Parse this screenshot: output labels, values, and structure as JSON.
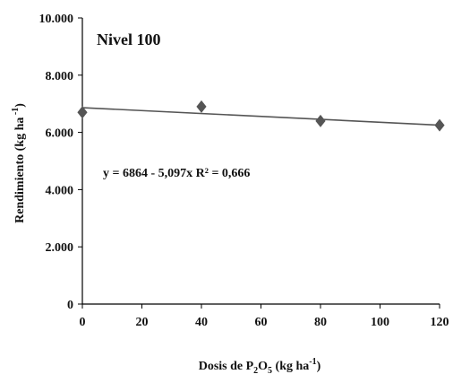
{
  "chart_data": {
    "type": "scatter",
    "title": "Nivel 100",
    "xlabel": "Dosis de P2O5 (kg ha-1)",
    "ylabel": "Rendimiento (kg ha-1)",
    "xlim": [
      0,
      120
    ],
    "ylim": [
      0,
      10000
    ],
    "x_ticks": [
      "0",
      "20",
      "40",
      "60",
      "80",
      "100",
      "120"
    ],
    "y_ticks": [
      "0",
      "2.000",
      "4.000",
      "6.000",
      "8.000",
      "10.000"
    ],
    "grid": false,
    "series": [
      {
        "x": [
          0,
          40,
          80,
          120
        ],
        "y": [
          6700,
          6900,
          6400,
          6250
        ],
        "marker": "diamond",
        "color": "#555555"
      }
    ],
    "trendline": {
      "intercept": 6864,
      "slope": -5.097,
      "color": "#555555"
    },
    "annotation": "y = 6864 - 5,097x  R² = 0,666"
  }
}
